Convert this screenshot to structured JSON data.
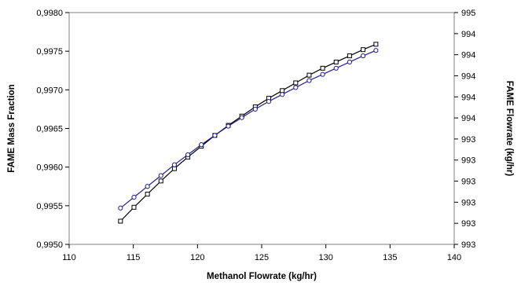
{
  "chart_data": {
    "type": "line",
    "title": "",
    "xlabel": "Methanol Flowrate (kg/hr)",
    "ylabel": "FAME Mass Fraction",
    "y2label": "FAME Flowrate (kg/hr)",
    "xlim": [
      110,
      140
    ],
    "ylim": [
      0.995,
      0.998
    ],
    "x_ticks": [
      "110",
      "115",
      "120",
      "125",
      "130",
      "135",
      "140"
    ],
    "y_ticks": [
      "0,9950",
      "0,9955",
      "0,9960",
      "0,9965",
      "0,9970",
      "0,9975",
      "0,9980"
    ],
    "y2_ticks": [
      "993",
      "993",
      "993",
      "993",
      "993",
      "993",
      "994",
      "994",
      "994",
      "994",
      "994",
      "995"
    ],
    "grid": false,
    "legend": "none",
    "series": [
      {
        "axis": "left",
        "marker": "square",
        "color": "#000000",
        "x": [
          114.0,
          115.05,
          116.1,
          117.15,
          118.2,
          119.25,
          120.3,
          121.35,
          122.4,
          123.45,
          124.5,
          125.55,
          126.6,
          127.65,
          128.7,
          129.75,
          130.8,
          131.85,
          132.9,
          133.9
        ],
        "y": [
          0.9953,
          0.99548,
          0.99565,
          0.99582,
          0.99598,
          0.99613,
          0.99627,
          0.99641,
          0.99654,
          0.99666,
          0.99678,
          0.99689,
          0.99699,
          0.99709,
          0.99719,
          0.99728,
          0.99736,
          0.99744,
          0.99752,
          0.99759
        ]
      },
      {
        "axis": "right",
        "marker": "circle",
        "color": "#1f1f8f",
        "x": [
          114.0,
          115.05,
          116.1,
          117.15,
          118.2,
          119.25,
          120.3,
          121.35,
          122.4,
          123.45,
          124.5,
          125.55,
          126.6,
          127.65,
          128.7,
          129.75,
          130.8,
          131.85,
          132.9,
          133.9
        ],
        "y": [
          0.99547,
          0.99561,
          0.99575,
          0.99589,
          0.99603,
          0.99616,
          0.99629,
          0.99641,
          0.99653,
          0.99664,
          0.99675,
          0.99685,
          0.99694,
          0.99703,
          0.99712,
          0.9972,
          0.99728,
          0.99736,
          0.99744,
          0.99751
        ]
      }
    ]
  }
}
